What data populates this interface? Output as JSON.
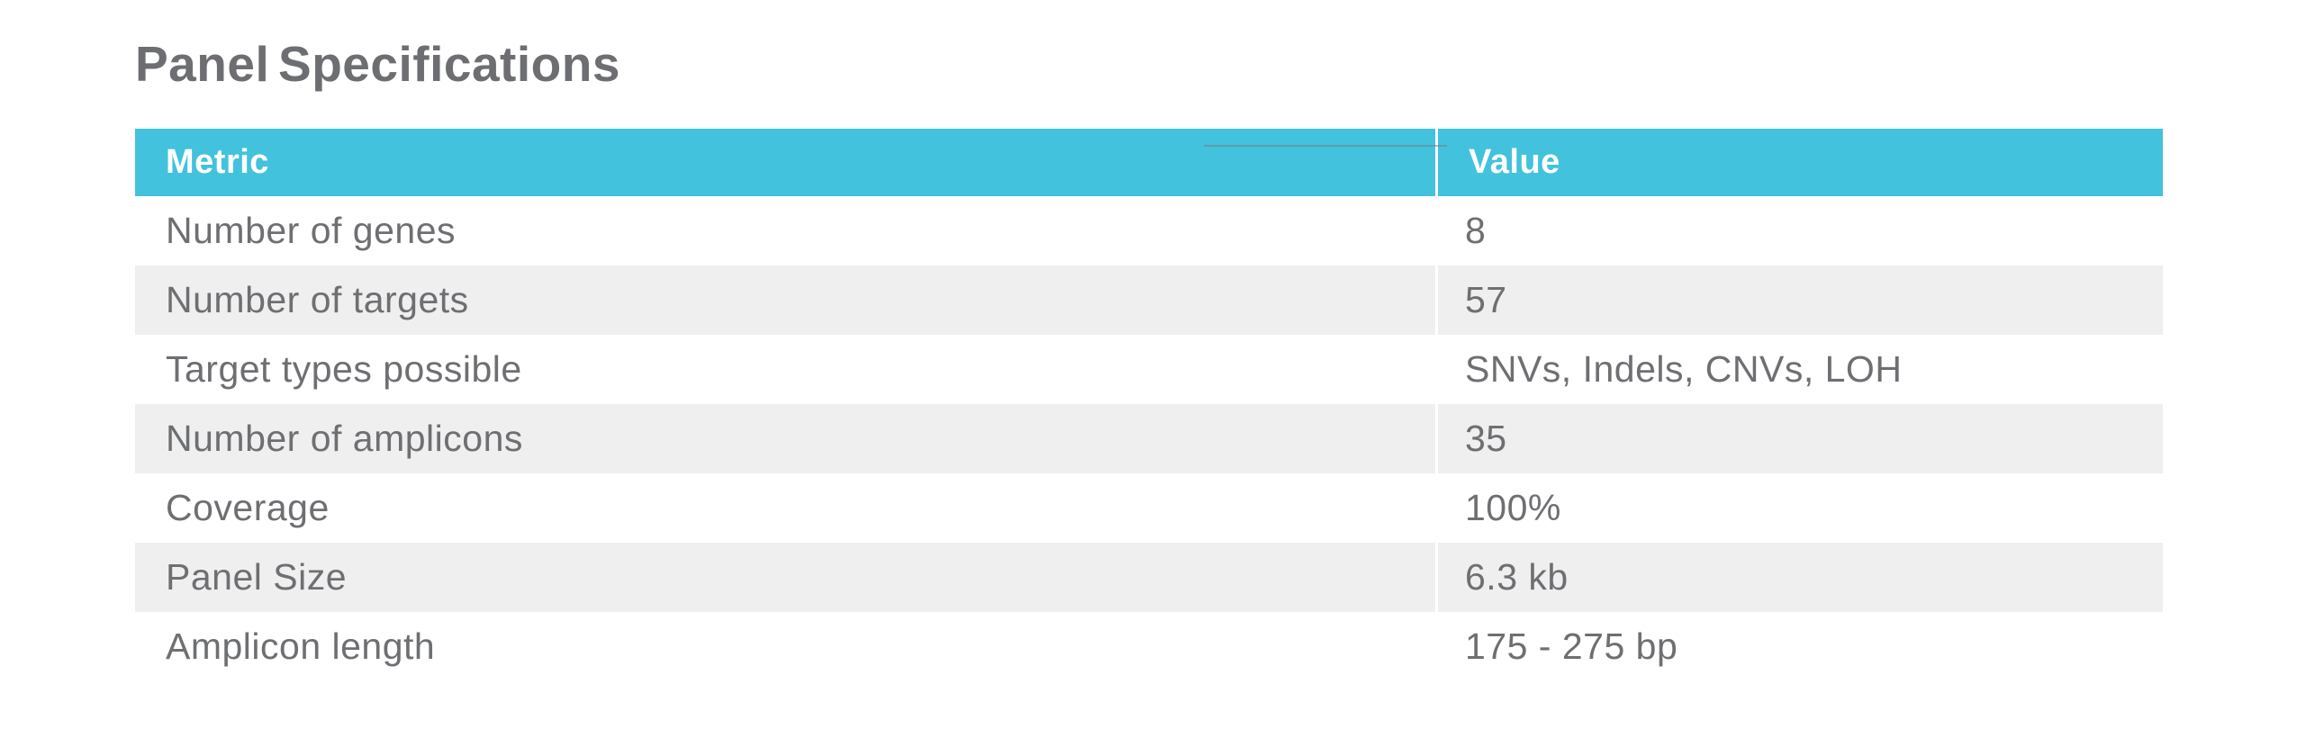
{
  "title": "Panel Specifications",
  "table": {
    "columns": [
      "Metric",
      "Value"
    ],
    "rows": [
      {
        "metric": "Number of genes",
        "value": "8"
      },
      {
        "metric": "Number of targets",
        "value": "57"
      },
      {
        "metric": "Target types possible",
        "value": "SNVs, Indels, CNVs, LOH"
      },
      {
        "metric": "Number of amplicons",
        "value": "35"
      },
      {
        "metric": "Coverage",
        "value": "100%"
      },
      {
        "metric": "Panel Size",
        "value": "6.3 kb"
      },
      {
        "metric": "Amplicon length",
        "value": "175 - 275 bp"
      }
    ]
  },
  "colors": {
    "accent": "#42c2dd",
    "header_text": "#ffffff",
    "row_stripe": "#efefef",
    "body_text": "#6e6f72",
    "title_text": "#6d6e71"
  }
}
